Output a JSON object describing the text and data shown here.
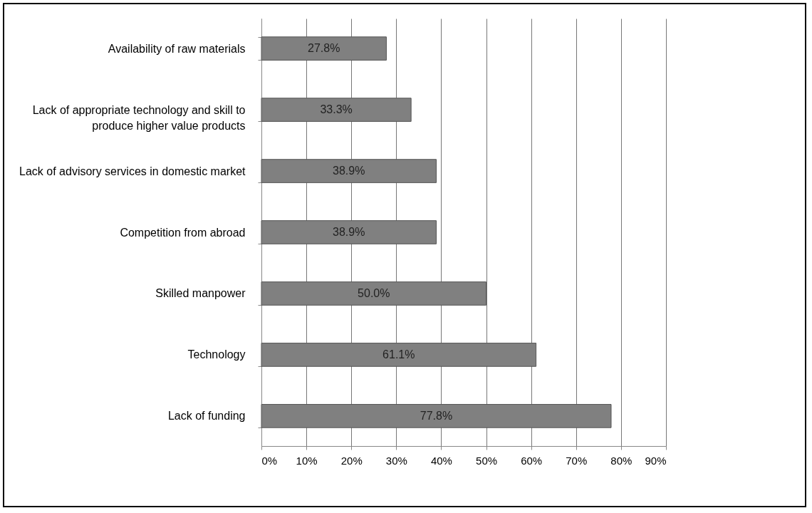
{
  "chart_data": {
    "type": "bar",
    "orientation": "horizontal",
    "categories": [
      "Availability of raw materials",
      "Lack of appropriate technology and skill to produce higher value products",
      "Lack of advisory services in domestic market",
      "Competition from abroad",
      "Skilled manpower",
      "Technology",
      "Lack of funding"
    ],
    "values": [
      27.8,
      33.3,
      38.9,
      38.9,
      50.0,
      61.1,
      77.8
    ],
    "value_labels": [
      "27.8%",
      "33.3%",
      "38.9%",
      "38.9%",
      "50.0%",
      "61.1%",
      "77.8%"
    ],
    "color": "#808080",
    "xlim": [
      0,
      90
    ],
    "xticks": [
      {
        "value": 0,
        "label": "0%"
      },
      {
        "value": 10,
        "label": "10%"
      },
      {
        "value": 20,
        "label": "20%"
      },
      {
        "value": 30,
        "label": "30%"
      },
      {
        "value": 40,
        "label": "40%"
      },
      {
        "value": 50,
        "label": "50%"
      },
      {
        "value": 60,
        "label": "60%"
      },
      {
        "value": 70,
        "label": "70%"
      },
      {
        "value": 80,
        "label": "80%"
      },
      {
        "value": 90,
        "label": "90%"
      }
    ],
    "grid": "x"
  }
}
